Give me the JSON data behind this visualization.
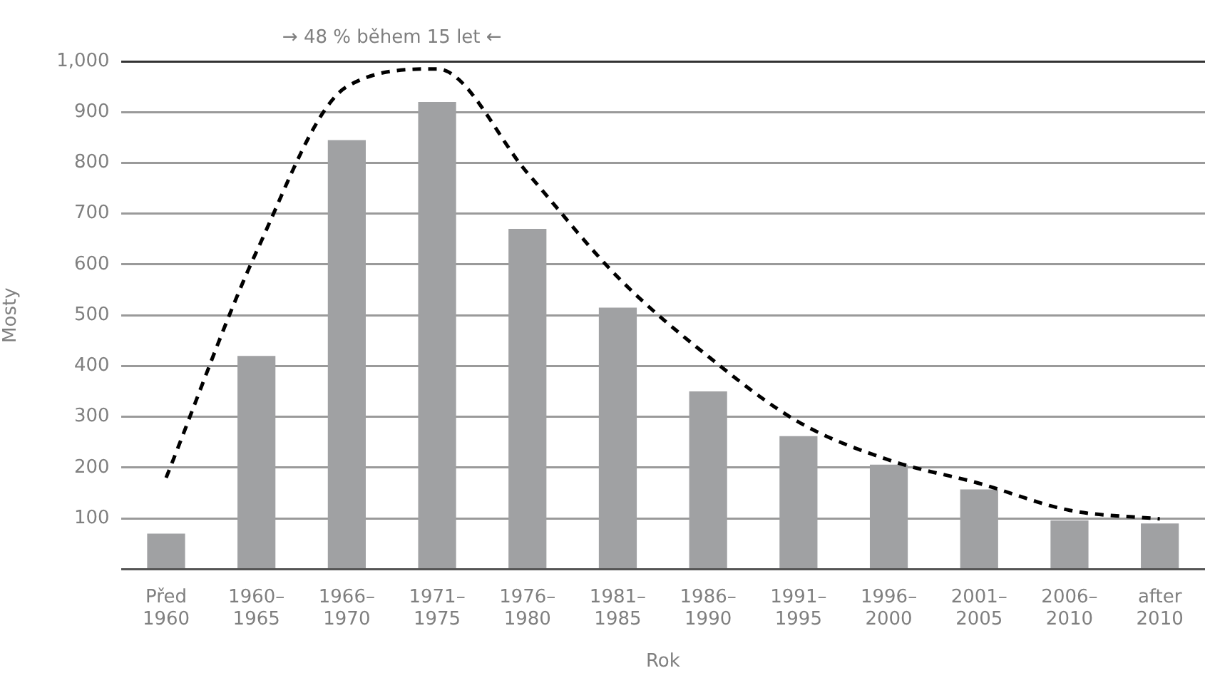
{
  "chart_data": {
    "type": "bar",
    "xlabel": "Rok",
    "ylabel": "Mosty",
    "annotations": [
      "→ 48 % během 15 let ←"
    ],
    "categories": [
      "Před 1960",
      "1960–1965",
      "1966–1970",
      "1971–1975",
      "1976–1980",
      "1981–1985",
      "1986–1990",
      "1991–1995",
      "1996–2000",
      "2001–2005",
      "2006–2010",
      "after 2010"
    ],
    "ylim": [
      0,
      1000
    ],
    "yticks": [
      100,
      200,
      300,
      400,
      500,
      600,
      700,
      800,
      900,
      {
        "value": 1000,
        "label": "1,000"
      }
    ],
    "grid": "y",
    "legend": false,
    "series": [
      {
        "color": "#a0a1a3",
        "values": [
          70,
          420,
          845,
          920,
          670,
          515,
          350,
          262,
          206,
          157,
          96,
          90
        ]
      },
      {
        "type": "line",
        "color": "#000000",
        "line_style": "dashed",
        "marker": "none",
        "values": [
          180,
          625,
          950,
          985,
          780,
          575,
          419,
          290,
          215,
          169,
          116,
          99
        ]
      }
    ]
  }
}
